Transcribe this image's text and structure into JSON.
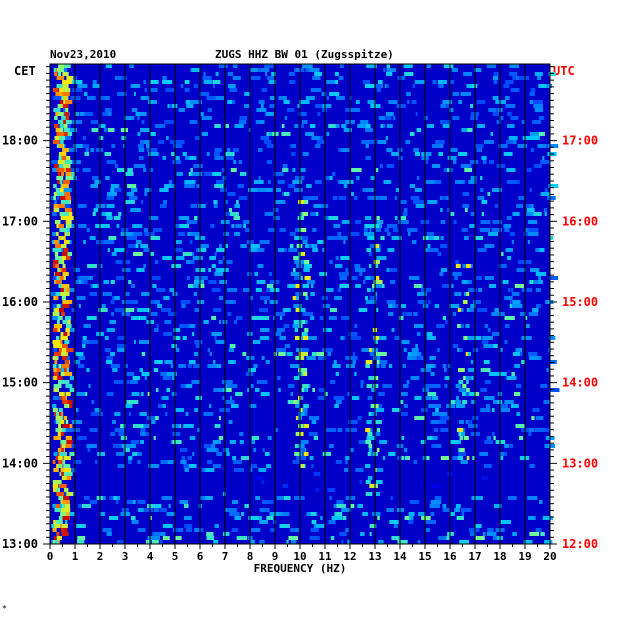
{
  "header": {
    "date": "Nov23,2010",
    "station": "ZUGS HHZ BW 01 (Zugsspitze)"
  },
  "timezones": {
    "left": "CET",
    "right": "UTC"
  },
  "colors": {
    "background": "#0000c8",
    "local_time_labels": "#000000",
    "utc_time_labels": "#ff0000",
    "gridlines": "#000000"
  },
  "footnote": "*",
  "chart_data": {
    "type": "heatmap",
    "title": "ZUGS HHZ BW 01 (Zugsspitze)",
    "date": "Nov23,2010",
    "xlabel": "FREQUENCY (HZ)",
    "xlim": [
      0,
      20
    ],
    "x_ticks": [
      "0",
      "1",
      "2",
      "3",
      "4",
      "5",
      "6",
      "7",
      "8",
      "9",
      "10",
      "11",
      "12",
      "13",
      "14",
      "15",
      "16",
      "17",
      "18",
      "19",
      "20"
    ],
    "y_left_label": "CET",
    "y_left_ticks": [
      "13:00",
      "14:00",
      "15:00",
      "16:00",
      "17:00",
      "18:00"
    ],
    "y_right_label": "UTC",
    "y_right_ticks": [
      "12:00",
      "13:00",
      "14:00",
      "15:00",
      "16:00",
      "17:00"
    ],
    "time_range_cet_hours": [
      13.0,
      18.95
    ],
    "vertical_grid": true,
    "features": [
      {
        "description": "strong low-frequency energy",
        "freq_hz": [
          0.1,
          0.8
        ],
        "time_cet_hours": [
          13.0,
          18.95
        ],
        "intensity": "high"
      },
      {
        "description": "intermittent band near 10 Hz",
        "freq_hz": [
          9.7,
          10.3
        ],
        "time_cet_hours": [
          13.9,
          17.3
        ],
        "intensity": "medium"
      },
      {
        "description": "band near 13 Hz",
        "freq_hz": [
          12.6,
          13.2
        ],
        "time_cet_hours": [
          13.6,
          17.2
        ],
        "intensity": "medium"
      },
      {
        "description": "band near 16.5 Hz",
        "freq_hz": [
          16.2,
          16.8
        ],
        "time_cet_hours": [
          14.0,
          16.5
        ],
        "intensity": "medium"
      },
      {
        "description": "quiet dark horizontal stripe",
        "freq_hz": [
          0,
          20
        ],
        "time_cet_hours": [
          13.6,
          13.9
        ],
        "intensity": "low"
      }
    ]
  }
}
